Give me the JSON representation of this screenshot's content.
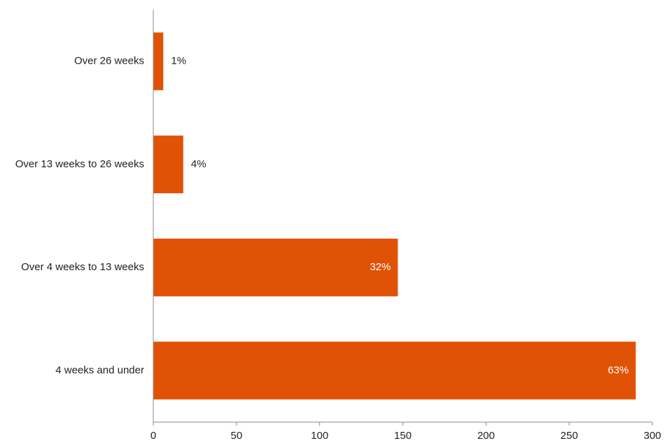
{
  "chart_data": {
    "type": "bar",
    "orientation": "horizontal",
    "title": "",
    "xlabel": "",
    "ylabel": "",
    "categories": [
      "Over 26 weeks",
      "Over 13 weeks to 26 weeks",
      "Over 4 weeks to 13 weeks",
      "4 weeks and under"
    ],
    "values": [
      6,
      18,
      147,
      290
    ],
    "data_labels": [
      "1%",
      "4%",
      "32%",
      "63%"
    ],
    "xlim": [
      0,
      300
    ],
    "xticks": [
      0,
      50,
      100,
      150,
      200,
      250,
      300
    ],
    "grid": false,
    "legend": "none",
    "colors": {
      "bar": "#E05206",
      "label_outside": "#222222",
      "label_inside": "#ffffff",
      "axis": "#888888"
    }
  }
}
